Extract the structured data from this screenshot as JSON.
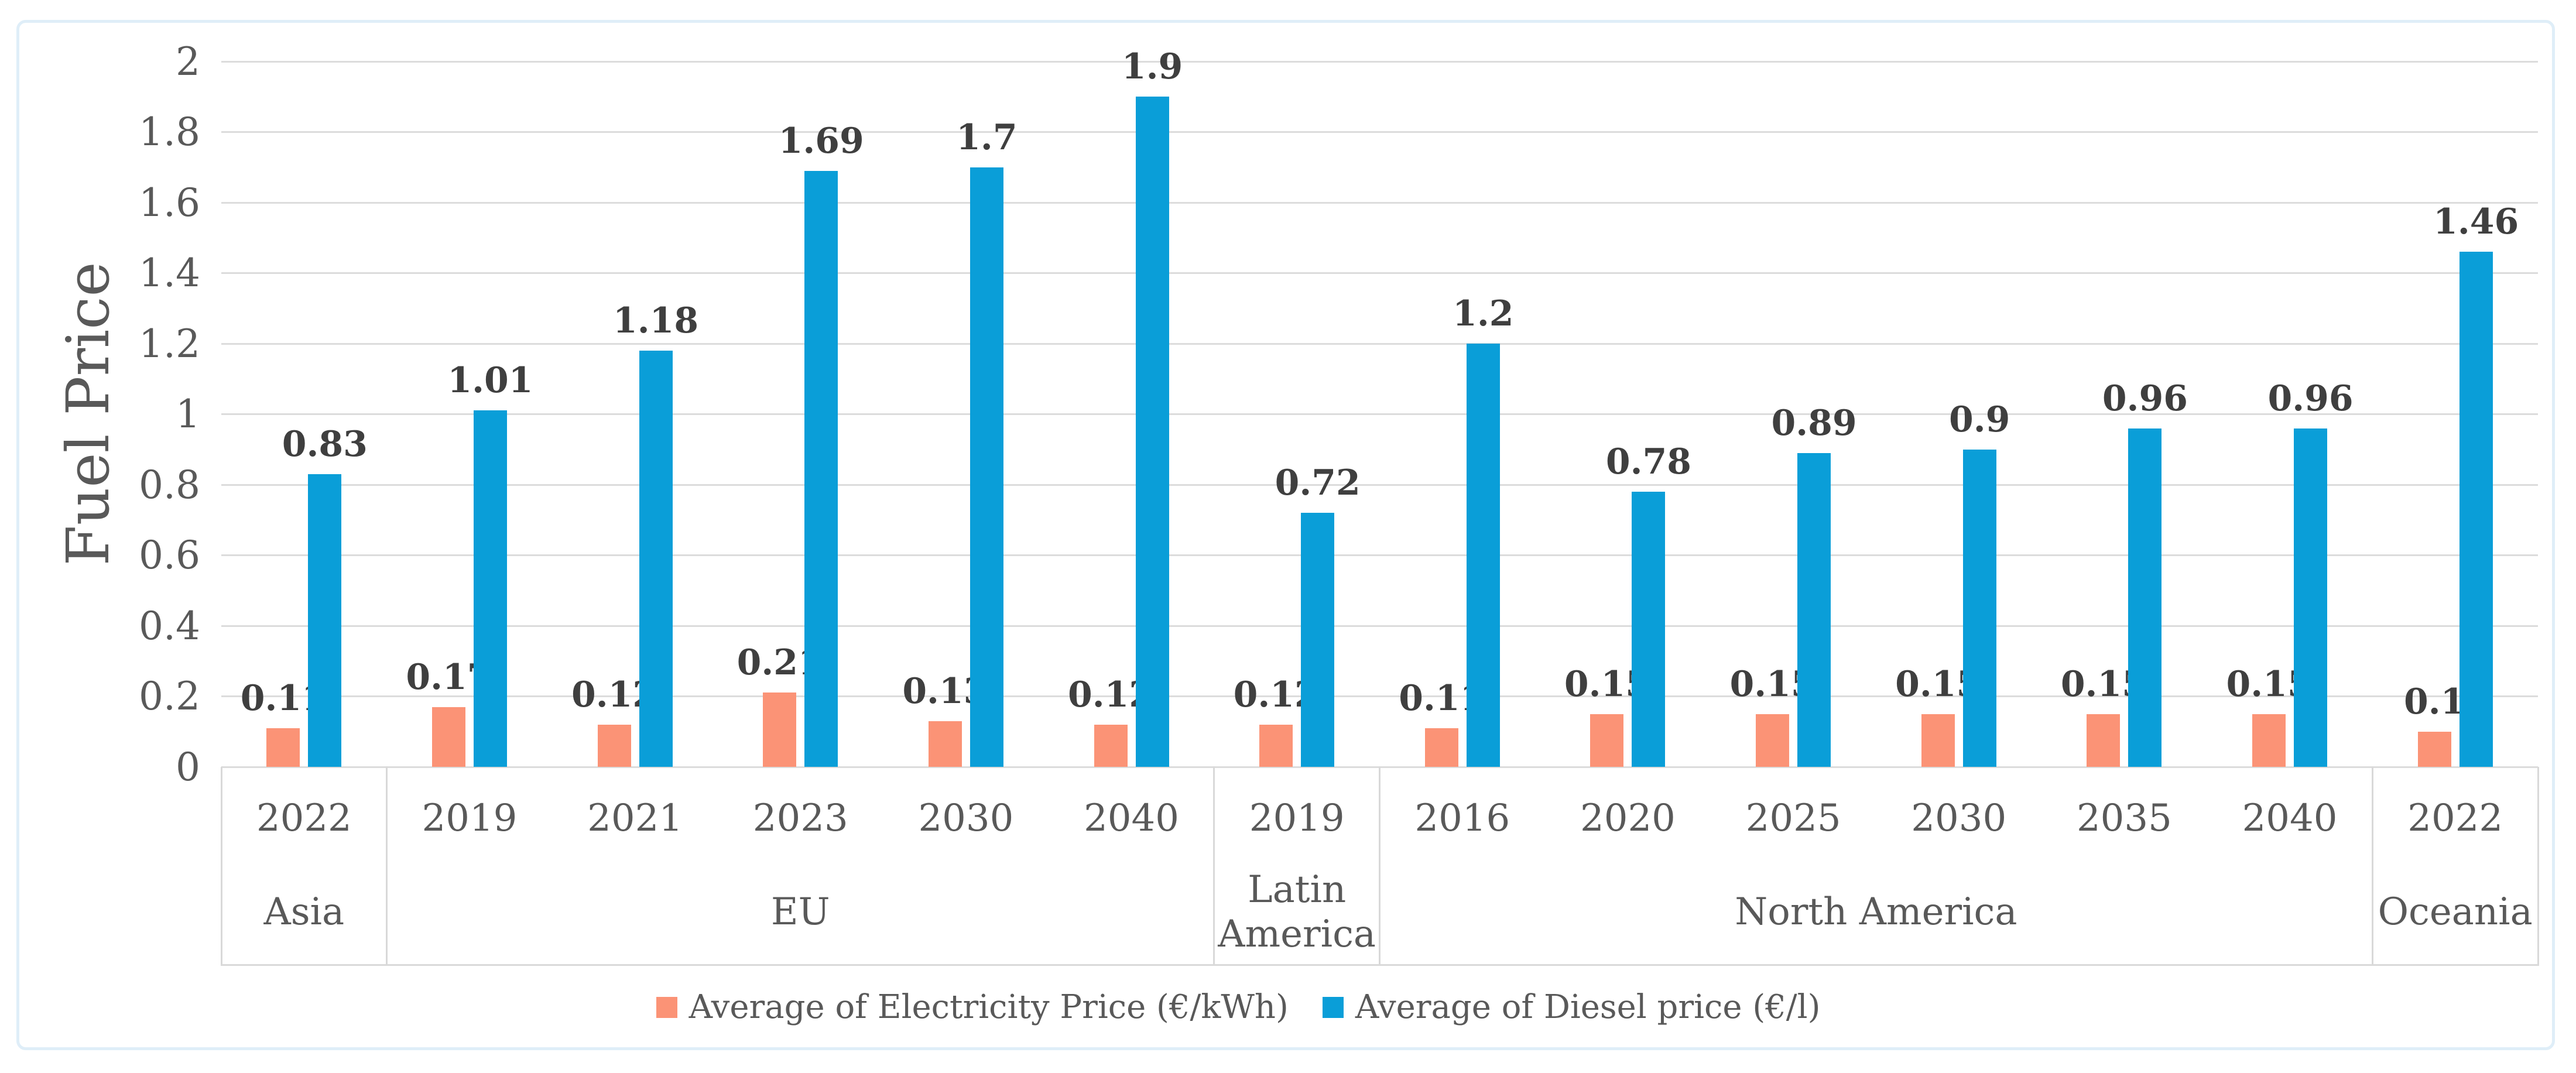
{
  "chart_data": {
    "type": "bar",
    "title": "",
    "ylabel": "Fuel Price",
    "xlabel": "",
    "ylim": [
      0,
      2
    ],
    "ytick_step": 0.2,
    "yticks": [
      "0",
      "0.2",
      "0.4",
      "0.6",
      "0.8",
      "1",
      "1.2",
      "1.4",
      "1.6",
      "1.8",
      "2"
    ],
    "grid": true,
    "legend_position": "bottom",
    "categories": [
      "2022",
      "2019",
      "2021",
      "2023",
      "2030",
      "2040",
      "2019",
      "2016",
      "2020",
      "2025",
      "2030",
      "2035",
      "2040",
      "2022"
    ],
    "groups": [
      {
        "label": "Asia",
        "span": 1
      },
      {
        "label": "EU",
        "span": 5
      },
      {
        "label": "Latin America",
        "span": 1
      },
      {
        "label": "North America",
        "span": 6
      },
      {
        "label": "Oceania",
        "span": 1
      }
    ],
    "series": [
      {
        "name": "Average of Electricity Price (€/kWh)",
        "color": "#fb9376",
        "values": [
          0.11,
          0.17,
          0.12,
          0.21,
          0.13,
          0.12,
          0.12,
          0.11,
          0.15,
          0.15,
          0.15,
          0.15,
          0.15,
          0.1
        ],
        "labels": [
          "0.11",
          "0.17",
          "0.12",
          "0.21",
          "0.13",
          "0.12",
          "0.12",
          "0.11",
          "0.15",
          "0.15",
          "0.15",
          "0.15",
          "0.15",
          "0.1"
        ]
      },
      {
        "name": "Average of Diesel price (€/l)",
        "color": "#0a9ed8",
        "values": [
          0.83,
          1.01,
          1.18,
          1.69,
          1.7,
          1.9,
          0.72,
          1.2,
          0.78,
          0.89,
          0.9,
          0.96,
          0.96,
          1.46
        ],
        "labels": [
          "0.83",
          "1.01",
          "1.18",
          "1.69",
          "1.7",
          "1.9",
          "0.72",
          "1.2",
          "0.78",
          "0.89",
          "0.9",
          "0.96",
          "0.96",
          "1.46"
        ]
      }
    ]
  },
  "colors": {
    "electricity": "#fb9376",
    "diesel": "#0a9ed8",
    "gridline": "#dcdcdc",
    "table_border": "#d9d9d9",
    "axis_text": "#595959",
    "data_label_text": "#3f3f3f",
    "box_border": "#dfeef8"
  }
}
